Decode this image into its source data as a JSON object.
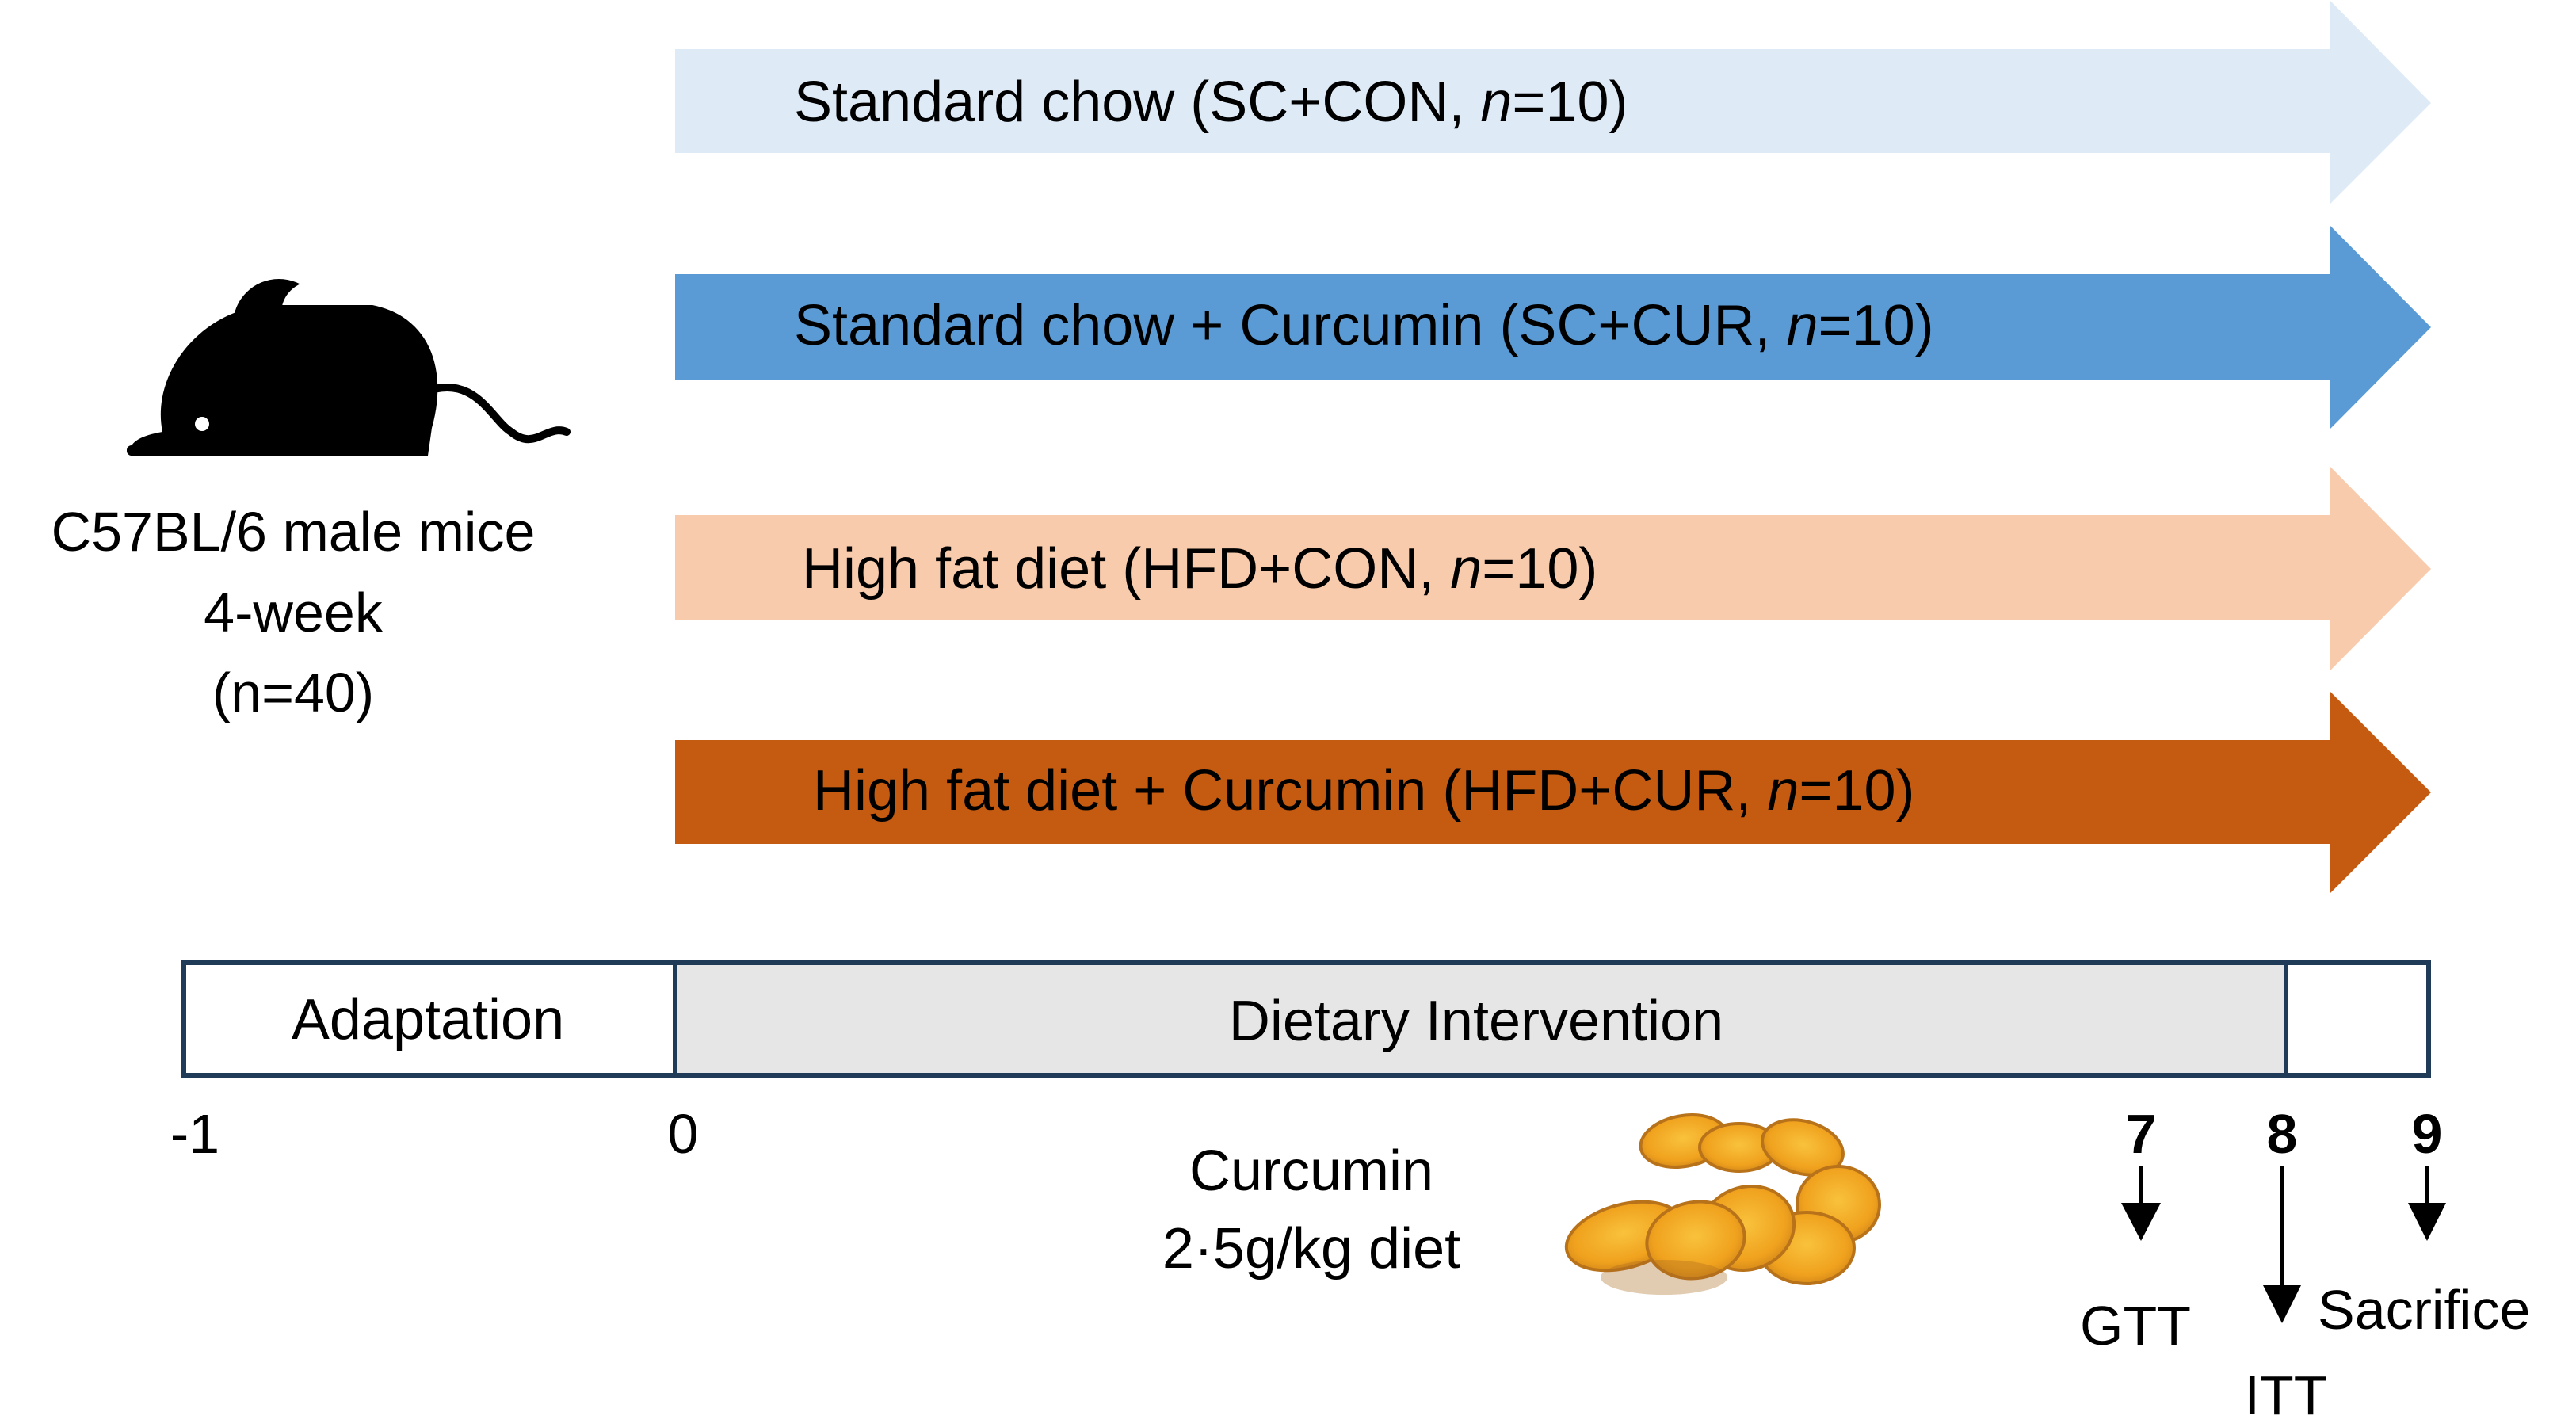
{
  "mouse": {
    "icon": "mouse-icon",
    "line1": "C57BL/6 male mice",
    "line2": "4-week",
    "line3": "(n=40)"
  },
  "groups": [
    {
      "prefix": "Standard chow (SC+CON, ",
      "n_italic": "n",
      "suffix": "=10)",
      "color": "#DEEBF7"
    },
    {
      "prefix": "Standard chow + Curcumin (SC+CUR, ",
      "n_italic": "n",
      "suffix": "=10)",
      "color": "#5B9BD5"
    },
    {
      "prefix": "High fat diet (HFD+CON, ",
      "n_italic": "n",
      "suffix": "=10)",
      "color": "#F8CBAD"
    },
    {
      "prefix": "High fat diet + Curcumin (HFD+CUR, ",
      "n_italic": "n",
      "suffix": "=10)",
      "color": "#C55A11"
    }
  ],
  "timeline": {
    "adaptation_label": "Adaptation",
    "intervention_label": "Dietary Intervention",
    "ticks": [
      "-1",
      "0",
      "7",
      "8",
      "9"
    ],
    "events": [
      "GTT",
      "ITT",
      "Sacrifice"
    ],
    "border_color": "#1F3B57",
    "intervention_fill": "#E7E6E6"
  },
  "curcumin": {
    "line1": "Curcumin",
    "line2": "2·5g/kg diet",
    "icon": "turmeric-slices-icon"
  }
}
